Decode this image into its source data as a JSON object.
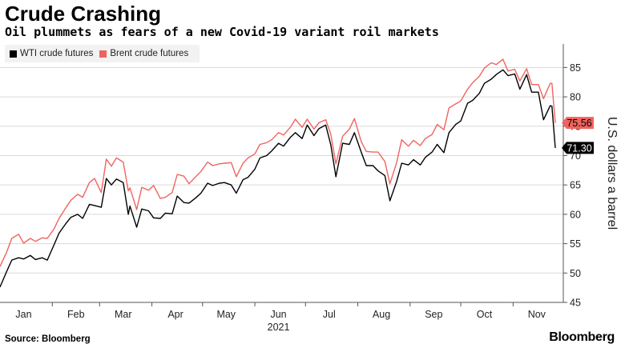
{
  "header": {
    "title": "Crude Crashing",
    "subtitle": "Oil plummets as fears of a new Covid-19 variant roil markets"
  },
  "footer": {
    "source": "Source: Bloomberg",
    "brand": "Bloomberg"
  },
  "colors": {
    "wti": "#000000",
    "brent": "#f0645f",
    "legend_bg": "#f2f2f2",
    "grid": "#d9d9d9"
  },
  "chart_data": {
    "type": "line",
    "title": "Crude Crashing",
    "subtitle": "Oil plummets as fears of a new Covid-19 variant roil markets",
    "ylabel": "U.S. dollars a barrel",
    "xlabel": "",
    "year_label": "2021",
    "ylim": [
      45,
      89
    ],
    "yticks": [
      45,
      50,
      55,
      60,
      65,
      70,
      75,
      80,
      85
    ],
    "y_axis_side": "right",
    "grid": true,
    "legend_position": "top-left",
    "x_tick_labels": [
      "Jan",
      "Feb",
      "Mar",
      "Apr",
      "May",
      "Jun",
      "Jul",
      "Aug",
      "Sep",
      "Oct",
      "Nov"
    ],
    "x_tick_dates": [
      "2021-01-15",
      "2021-02-15",
      "2021-03-15",
      "2021-04-15",
      "2021-05-15",
      "2021-06-15",
      "2021-07-15",
      "2021-08-15",
      "2021-09-15",
      "2021-10-15",
      "2021-11-15"
    ],
    "x": [
      "2021-01-01",
      "2021-01-05",
      "2021-01-08",
      "2021-01-12",
      "2021-01-15",
      "2021-01-19",
      "2021-01-22",
      "2021-01-26",
      "2021-01-29",
      "2021-02-02",
      "2021-02-05",
      "2021-02-09",
      "2021-02-12",
      "2021-02-16",
      "2021-02-19",
      "2021-02-23",
      "2021-02-26",
      "2021-03-02",
      "2021-03-05",
      "2021-03-08",
      "2021-03-11",
      "2021-03-15",
      "2021-03-18",
      "2021-03-19",
      "2021-03-23",
      "2021-03-26",
      "2021-03-30",
      "2021-04-02",
      "2021-04-06",
      "2021-04-09",
      "2021-04-13",
      "2021-04-16",
      "2021-04-20",
      "2021-04-23",
      "2021-04-27",
      "2021-04-30",
      "2021-05-04",
      "2021-05-07",
      "2021-05-11",
      "2021-05-14",
      "2021-05-18",
      "2021-05-21",
      "2021-05-25",
      "2021-05-28",
      "2021-06-01",
      "2021-06-04",
      "2021-06-08",
      "2021-06-11",
      "2021-06-15",
      "2021-06-18",
      "2021-06-22",
      "2021-06-25",
      "2021-06-29",
      "2021-07-02",
      "2021-07-06",
      "2021-07-09",
      "2021-07-13",
      "2021-07-16",
      "2021-07-19",
      "2021-07-23",
      "2021-07-27",
      "2021-07-30",
      "2021-08-03",
      "2021-08-06",
      "2021-08-10",
      "2021-08-13",
      "2021-08-17",
      "2021-08-20",
      "2021-08-24",
      "2021-08-27",
      "2021-08-31",
      "2021-09-03",
      "2021-09-07",
      "2021-09-10",
      "2021-09-14",
      "2021-09-17",
      "2021-09-21",
      "2021-09-24",
      "2021-09-28",
      "2021-10-01",
      "2021-10-05",
      "2021-10-08",
      "2021-10-12",
      "2021-10-15",
      "2021-10-19",
      "2021-10-22",
      "2021-10-26",
      "2021-10-29",
      "2021-11-02",
      "2021-11-05",
      "2021-11-09",
      "2021-11-12",
      "2021-11-16",
      "2021-11-19",
      "2021-11-23",
      "2021-11-24",
      "2021-11-26"
    ],
    "series": [
      {
        "name": "WTI crude futures",
        "color": "#000000",
        "last_label": "71.30",
        "values": [
          47.6,
          50.3,
          52.2,
          52.6,
          52.4,
          53.0,
          52.3,
          52.6,
          52.2,
          54.8,
          56.8,
          58.4,
          59.5,
          60.0,
          59.3,
          61.7,
          61.5,
          61.2,
          66.1,
          65.0,
          66.0,
          65.4,
          60.0,
          61.4,
          57.8,
          60.9,
          60.6,
          59.4,
          59.3,
          60.2,
          60.1,
          63.1,
          62.0,
          61.9,
          62.8,
          63.6,
          65.3,
          64.9,
          65.3,
          65.4,
          65.0,
          63.6,
          65.9,
          66.3,
          67.7,
          69.6,
          70.0,
          70.8,
          72.1,
          71.6,
          73.1,
          73.9,
          72.9,
          75.2,
          73.4,
          74.6,
          75.2,
          71.8,
          66.4,
          72.1,
          71.9,
          73.9,
          70.6,
          68.3,
          68.3,
          67.4,
          66.6,
          62.3,
          65.6,
          68.7,
          68.4,
          69.3,
          68.4,
          69.7,
          70.6,
          71.9,
          70.5,
          73.9,
          75.3,
          75.9,
          78.9,
          79.4,
          80.6,
          82.3,
          83.0,
          83.8,
          84.6,
          83.6,
          83.9,
          81.3,
          83.8,
          80.8,
          80.8,
          76.1,
          78.5,
          78.4,
          71.3
        ]
      },
      {
        "name": "Brent crude futures",
        "color": "#f0645f",
        "last_label": "75.56",
        "values": [
          51.1,
          53.6,
          55.9,
          56.6,
          55.1,
          55.9,
          55.4,
          56.0,
          55.9,
          57.5,
          59.3,
          61.1,
          62.4,
          63.4,
          62.9,
          65.4,
          66.1,
          63.7,
          69.4,
          68.2,
          69.6,
          68.9,
          64.0,
          64.5,
          60.8,
          64.6,
          64.1,
          64.9,
          62.7,
          62.9,
          63.7,
          66.8,
          66.5,
          65.2,
          66.4,
          67.3,
          68.9,
          68.3,
          68.6,
          68.7,
          68.8,
          66.4,
          68.7,
          69.6,
          70.3,
          71.9,
          72.2,
          72.7,
          73.9,
          73.5,
          74.8,
          76.2,
          74.8,
          76.2,
          74.5,
          75.6,
          76.1,
          73.6,
          68.6,
          73.3,
          74.5,
          76.3,
          72.4,
          70.7,
          70.6,
          70.6,
          69.0,
          65.2,
          68.8,
          72.7,
          71.6,
          72.6,
          71.7,
          72.9,
          73.6,
          75.3,
          74.4,
          78.1,
          78.8,
          79.3,
          81.3,
          82.4,
          83.5,
          84.9,
          85.8,
          85.5,
          86.4,
          84.4,
          84.7,
          82.7,
          84.8,
          82.1,
          82.1,
          79.7,
          82.3,
          82.3,
          75.56
        ]
      }
    ]
  }
}
